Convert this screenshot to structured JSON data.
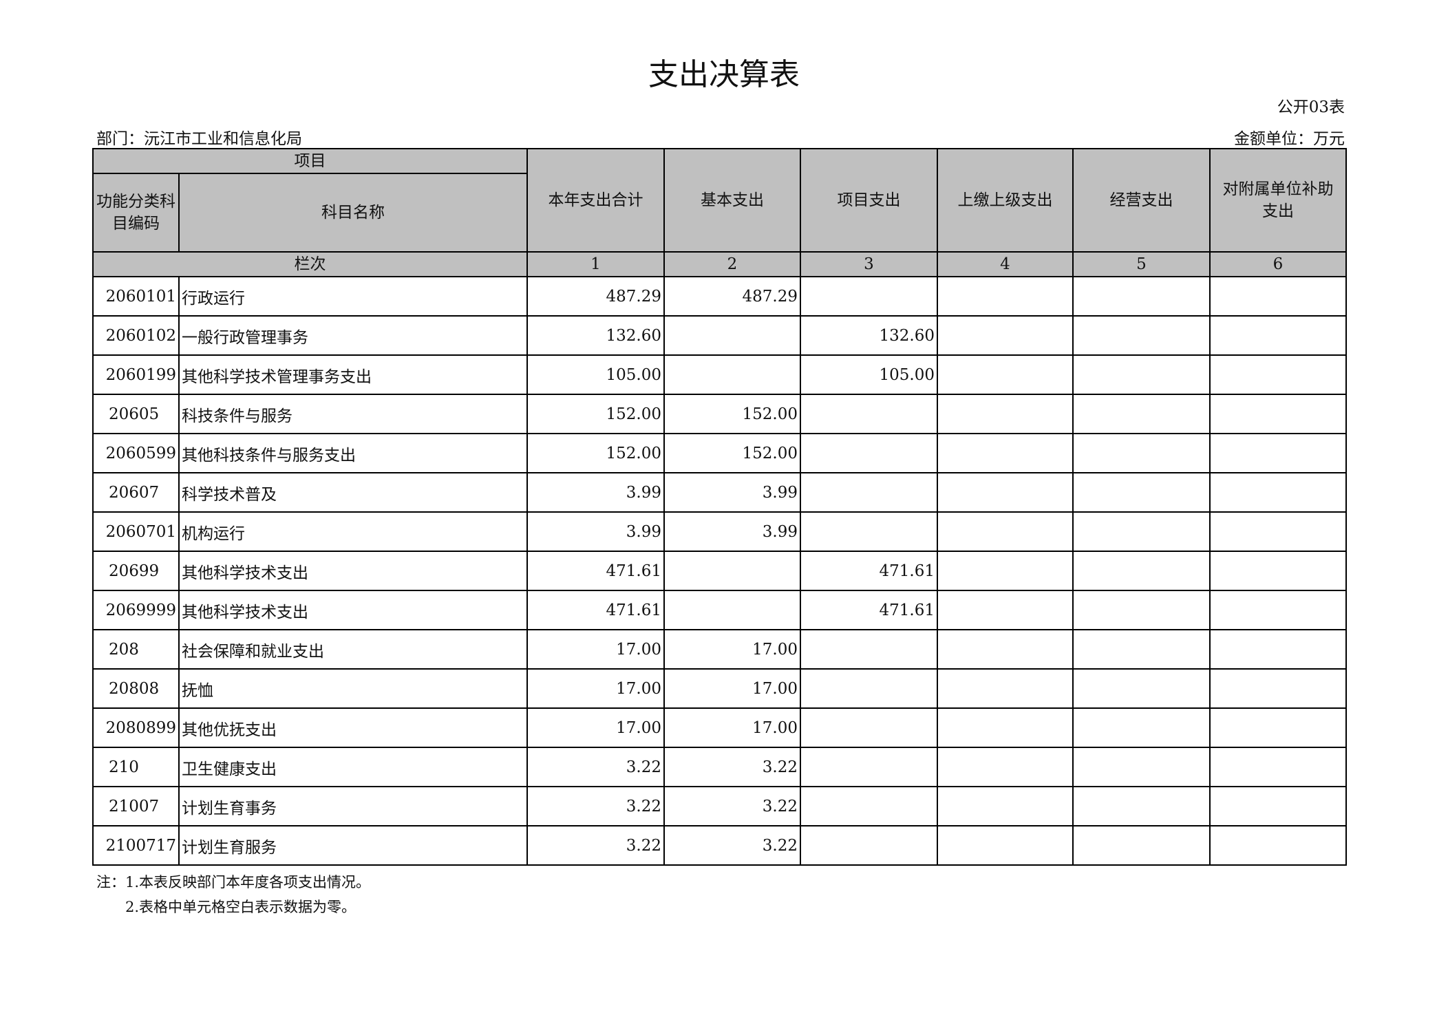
{
  "title": "支出决算表",
  "form_no": "公开03表",
  "department": "部门：沅江市工业和信息化局",
  "unit": "金额单位：万元",
  "header": {
    "project": "项目",
    "code": "功能分类科目编码",
    "name": "科目名称",
    "columns": [
      "本年支出合计",
      "基本支出",
      "项目支出",
      "上缴上级支出",
      "经营支出",
      "对附属单位补助支出"
    ],
    "row_label": "栏次",
    "column_numbers": [
      "1",
      "2",
      "3",
      "4",
      "5",
      "6"
    ]
  },
  "rows": [
    {
      "code": "2060101",
      "name": "行政运行",
      "v": [
        "487.29",
        "487.29",
        "",
        "",
        "",
        ""
      ]
    },
    {
      "code": "2060102",
      "name": "一般行政管理事务",
      "v": [
        "132.60",
        "",
        "132.60",
        "",
        "",
        ""
      ]
    },
    {
      "code": "2060199",
      "name": "其他科学技术管理事务支出",
      "v": [
        "105.00",
        "",
        "105.00",
        "",
        "",
        ""
      ]
    },
    {
      "code": "20605",
      "name": "科技条件与服务",
      "v": [
        "152.00",
        "152.00",
        "",
        "",
        "",
        ""
      ]
    },
    {
      "code": "2060599",
      "name": "其他科技条件与服务支出",
      "v": [
        "152.00",
        "152.00",
        "",
        "",
        "",
        ""
      ]
    },
    {
      "code": "20607",
      "name": "科学技术普及",
      "v": [
        "3.99",
        "3.99",
        "",
        "",
        "",
        ""
      ]
    },
    {
      "code": "2060701",
      "name": "机构运行",
      "v": [
        "3.99",
        "3.99",
        "",
        "",
        "",
        ""
      ]
    },
    {
      "code": "20699",
      "name": "其他科学技术支出",
      "v": [
        "471.61",
        "",
        "471.61",
        "",
        "",
        ""
      ]
    },
    {
      "code": "2069999",
      "name": "其他科学技术支出",
      "v": [
        "471.61",
        "",
        "471.61",
        "",
        "",
        ""
      ]
    },
    {
      "code": "208",
      "name": "社会保障和就业支出",
      "v": [
        "17.00",
        "17.00",
        "",
        "",
        "",
        ""
      ]
    },
    {
      "code": "20808",
      "name": "抚恤",
      "v": [
        "17.00",
        "17.00",
        "",
        "",
        "",
        ""
      ]
    },
    {
      "code": "2080899",
      "name": "其他优抚支出",
      "v": [
        "17.00",
        "17.00",
        "",
        "",
        "",
        ""
      ]
    },
    {
      "code": "210",
      "name": "卫生健康支出",
      "v": [
        "3.22",
        "3.22",
        "",
        "",
        "",
        ""
      ]
    },
    {
      "code": "21007",
      "name": "计划生育事务",
      "v": [
        "3.22",
        "3.22",
        "",
        "",
        "",
        ""
      ]
    },
    {
      "code": "2100717",
      "name": "计划生育服务",
      "v": [
        "3.22",
        "3.22",
        "",
        "",
        "",
        ""
      ]
    }
  ],
  "notes": [
    "注：1.本表反映部门本年度各项支出情况。",
    "2.表格中单元格空白表示数据为零。"
  ]
}
